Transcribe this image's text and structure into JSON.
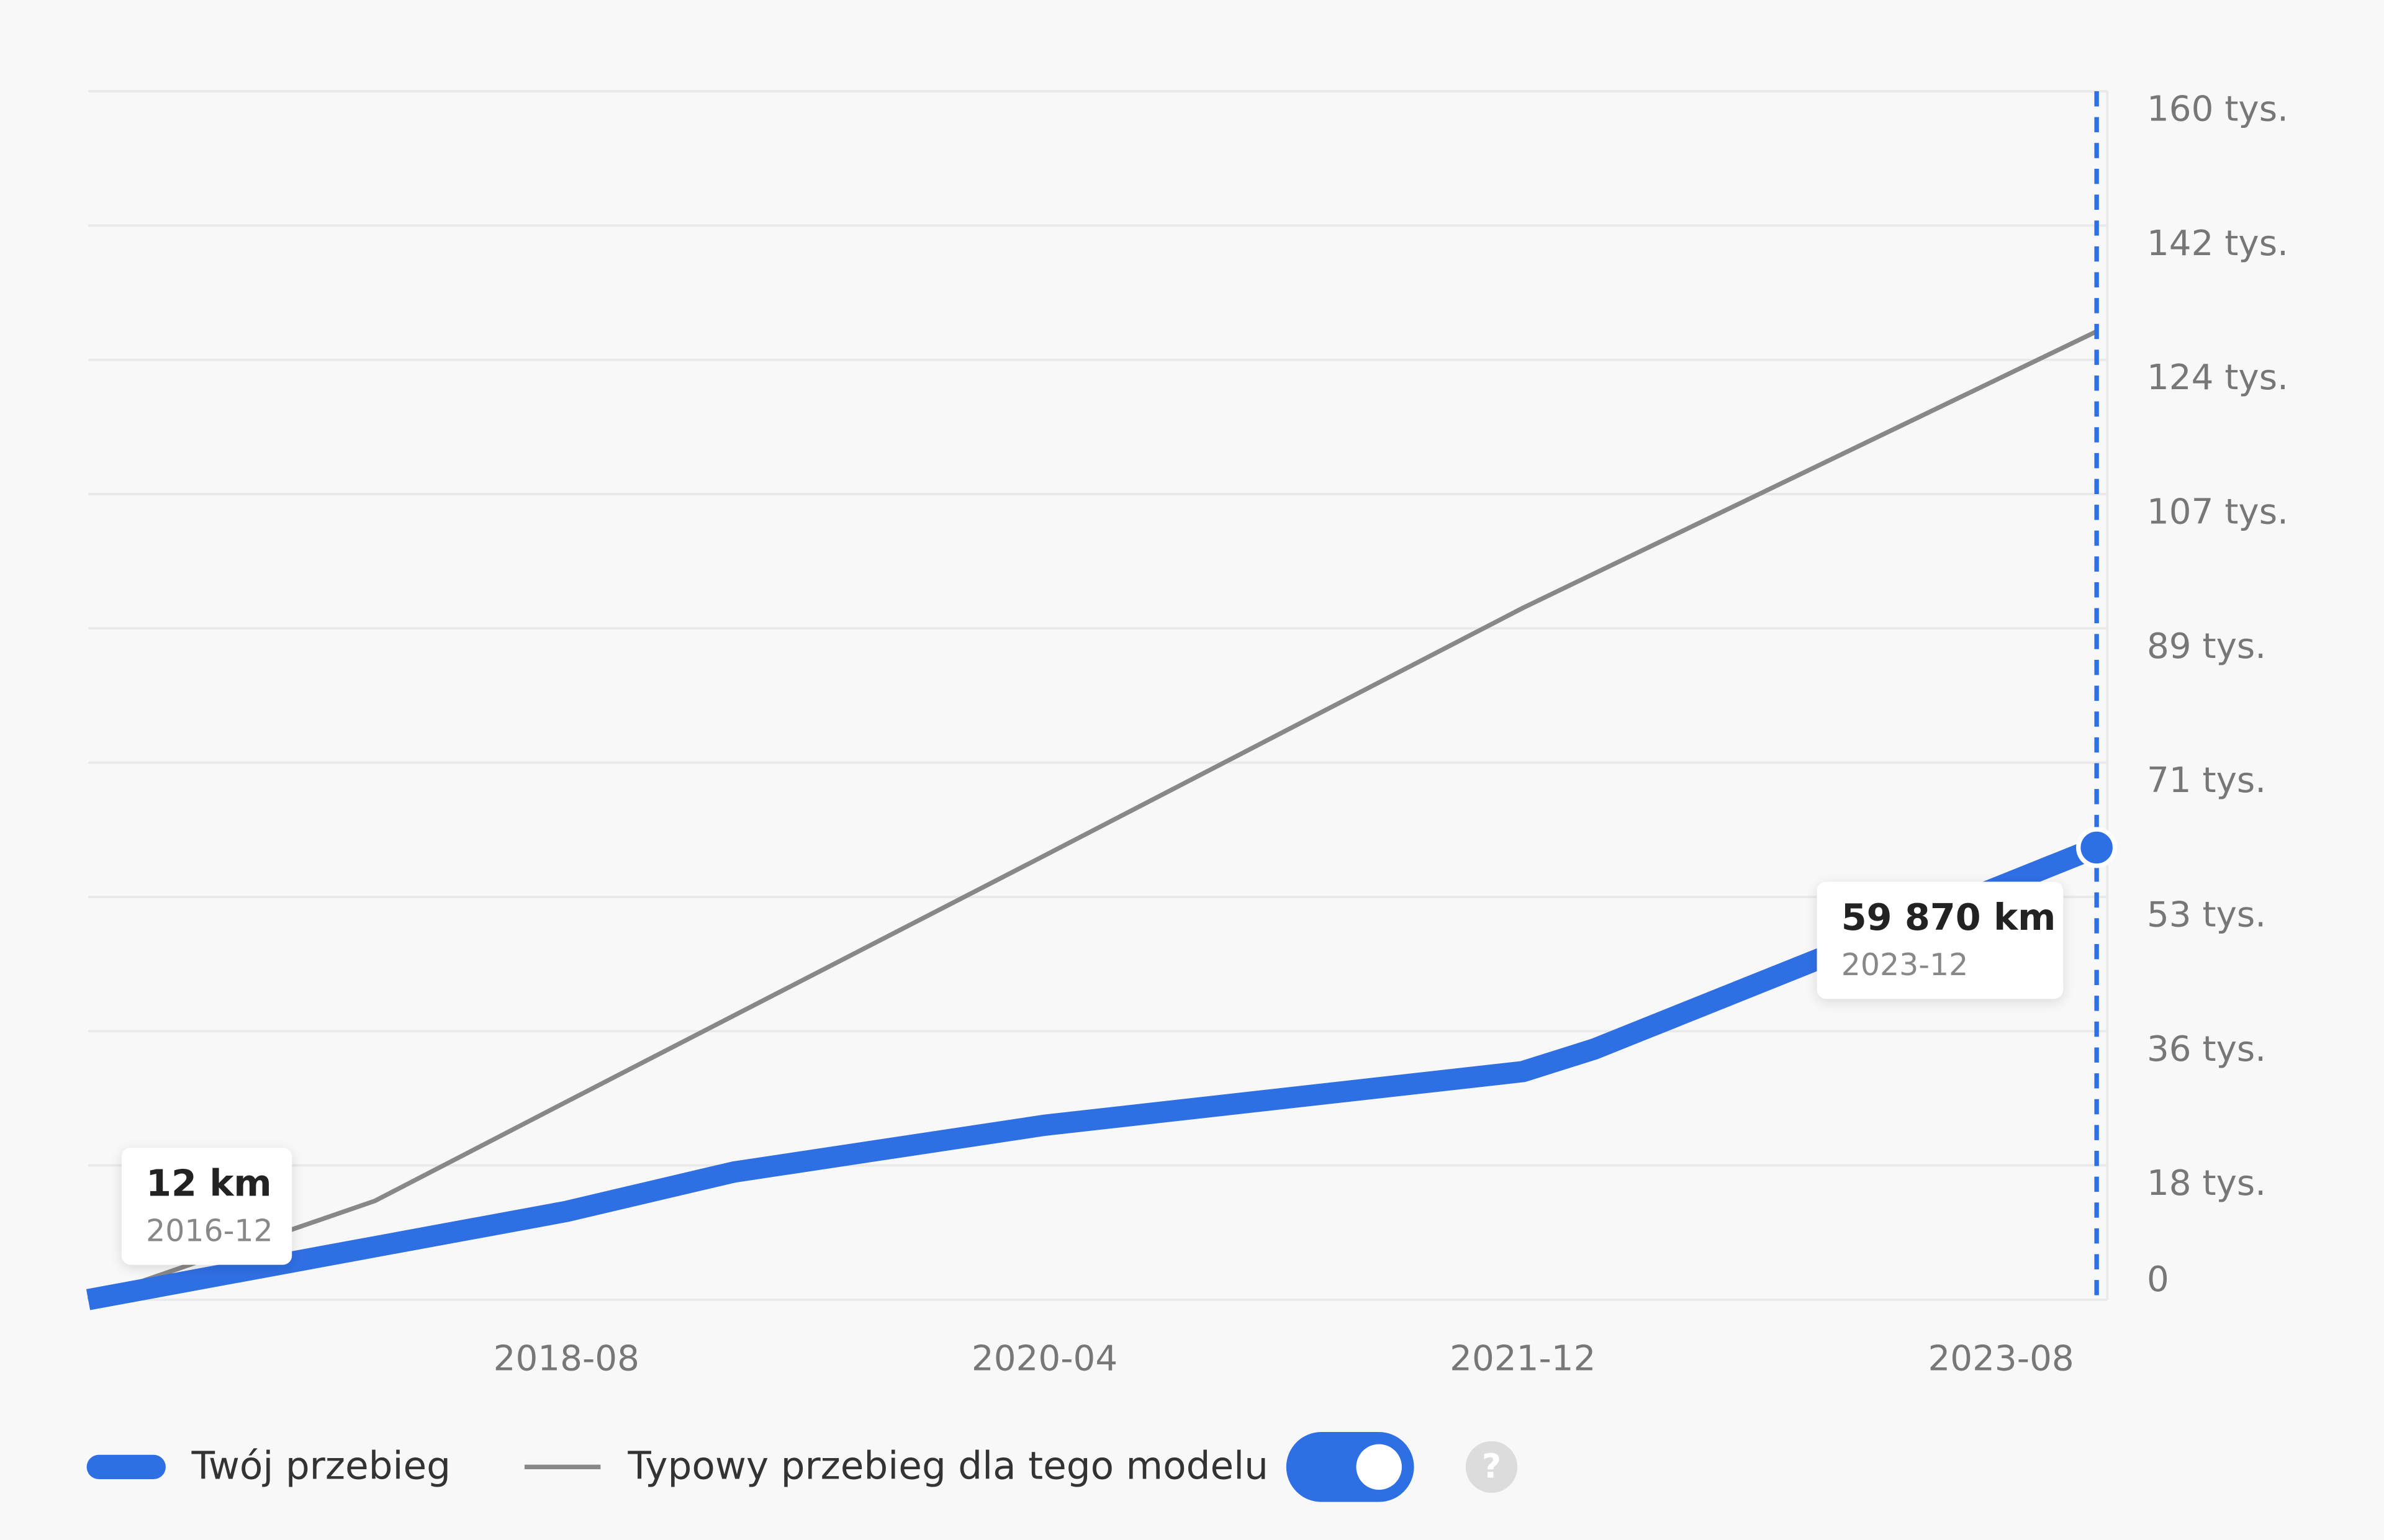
{
  "chart_data": {
    "type": "line",
    "xlim": [
      "2016-12",
      "2023-12"
    ],
    "xticks": [
      "2018-08",
      "2020-04",
      "2021-12",
      "2023-08"
    ],
    "ylim": [
      0,
      160000
    ],
    "yticks": [
      {
        "value": 0,
        "label": "0"
      },
      {
        "value": 17778,
        "label": "18 tys."
      },
      {
        "value": 35556,
        "label": "36 tys."
      },
      {
        "value": 53333,
        "label": "53 tys."
      },
      {
        "value": 71111,
        "label": "71 tys."
      },
      {
        "value": 88889,
        "label": "89 tys."
      },
      {
        "value": 106667,
        "label": "107 tys."
      },
      {
        "value": 124444,
        "label": "124 tys."
      },
      {
        "value": 142222,
        "label": "142 tys."
      },
      {
        "value": 160000,
        "label": "160 tys."
      }
    ],
    "grid": true,
    "series": [
      {
        "name": "Twój przebieg",
        "color": "#2f6fe4",
        "x": [
          "2016-12",
          "2018-08",
          "2019-03",
          "2020-04",
          "2021-12",
          "2022-03",
          "2023-12"
        ],
        "values": [
          12,
          11700,
          16900,
          23100,
          30200,
          33200,
          59870
        ],
        "value_labels": [
          "12 km",
          null,
          null,
          null,
          null,
          null,
          "59 870 km"
        ]
      },
      {
        "name": "Typowy przebieg dla tego modelu",
        "color": "#888888",
        "x": [
          "2016-12",
          "2017-12",
          "2018-08",
          "2020-04",
          "2021-12",
          "2023-12"
        ],
        "values": [
          0,
          13100,
          26200,
          58800,
          91600,
          128200
        ]
      }
    ],
    "help": "?"
  }
}
